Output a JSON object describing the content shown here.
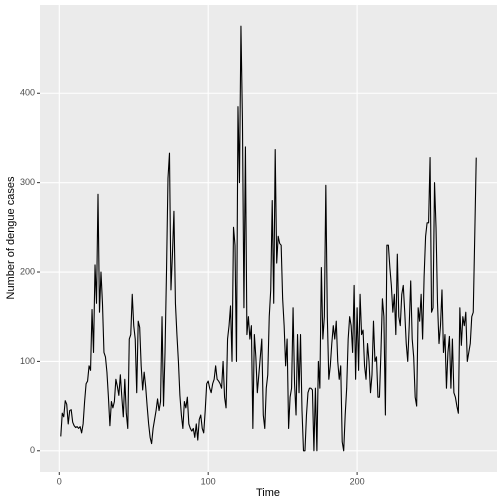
{
  "chart_data": {
    "type": "line",
    "x_label": "Time",
    "y_label": "Number of dengue cases",
    "x": [
      1,
      2,
      3,
      4,
      5,
      6,
      7,
      8,
      9,
      10,
      11,
      12,
      13,
      14,
      15,
      16,
      17,
      18,
      19,
      20,
      21,
      22,
      23,
      24,
      25,
      26,
      27,
      28,
      29,
      30,
      31,
      32,
      33,
      34,
      35,
      36,
      37,
      38,
      39,
      40,
      41,
      42,
      43,
      44,
      45,
      46,
      47,
      48,
      49,
      50,
      51,
      52,
      53,
      54,
      55,
      56,
      57,
      58,
      59,
      60,
      61,
      62,
      63,
      64,
      65,
      66,
      67,
      68,
      69,
      70,
      71,
      72,
      73,
      74,
      75,
      76,
      77,
      78,
      79,
      80,
      81,
      82,
      83,
      84,
      85,
      86,
      87,
      88,
      89,
      90,
      91,
      92,
      93,
      94,
      95,
      96,
      97,
      98,
      99,
      100,
      101,
      102,
      103,
      104,
      105,
      106,
      107,
      108,
      109,
      110,
      111,
      112,
      113,
      114,
      115,
      116,
      117,
      118,
      119,
      120,
      121,
      122,
      123,
      124,
      125,
      126,
      127,
      128,
      129,
      130,
      131,
      132,
      133,
      134,
      135,
      136,
      137,
      138,
      139,
      140,
      141,
      142,
      143,
      144,
      145,
      146,
      147,
      148,
      149,
      150,
      151,
      152,
      153,
      154,
      155,
      156,
      157,
      158,
      159,
      160,
      161,
      162,
      163,
      164,
      165,
      166,
      167,
      168,
      169,
      170,
      171,
      172,
      173,
      174,
      175,
      176,
      177,
      178,
      179,
      180,
      181,
      182,
      183,
      184,
      185,
      186,
      187,
      188,
      189,
      190,
      191,
      192,
      193,
      194,
      195,
      196,
      197,
      198,
      199,
      200,
      201,
      202,
      203,
      204,
      205,
      206,
      207,
      208,
      209,
      210,
      211,
      212,
      213,
      214,
      215,
      216,
      217,
      218,
      219,
      220,
      221,
      222,
      223,
      224,
      225,
      226,
      227,
      228,
      229,
      230,
      231,
      232,
      233,
      234,
      235,
      236,
      237,
      238,
      239,
      240,
      241,
      242,
      243,
      244,
      245,
      246,
      247,
      248,
      249,
      250,
      251,
      252,
      253,
      254,
      255,
      256,
      257,
      258,
      259,
      260,
      261,
      262,
      263,
      264,
      265,
      266,
      267,
      268,
      269,
      270,
      271,
      272,
      273,
      274,
      275,
      276,
      277,
      278,
      279,
      280
    ],
    "values": [
      16,
      42,
      38,
      56,
      52,
      30,
      45,
      46,
      32,
      28,
      26,
      27,
      25,
      27,
      20,
      30,
      55,
      75,
      78,
      95,
      90,
      158,
      110,
      208,
      165,
      287,
      155,
      200,
      165,
      110,
      105,
      88,
      60,
      28,
      55,
      48,
      55,
      80,
      72,
      62,
      85,
      60,
      38,
      80,
      42,
      25,
      125,
      130,
      175,
      140,
      125,
      65,
      145,
      138,
      95,
      68,
      88,
      72,
      50,
      30,
      15,
      8,
      25,
      35,
      45,
      58,
      45,
      55,
      150,
      50,
      110,
      200,
      305,
      333,
      180,
      220,
      268,
      165,
      130,
      100,
      62,
      40,
      25,
      55,
      48,
      60,
      30,
      25,
      22,
      25,
      15,
      30,
      12,
      35,
      40,
      25,
      20,
      45,
      75,
      78,
      70,
      65,
      75,
      80,
      95,
      80,
      78,
      75,
      70,
      100,
      60,
      48,
      125,
      140,
      162,
      100,
      250,
      230,
      100,
      385,
      300,
      475,
      370,
      160,
      340,
      130,
      150,
      125,
      140,
      25,
      130,
      105,
      65,
      85,
      105,
      125,
      40,
      25,
      70,
      85,
      150,
      180,
      280,
      165,
      337,
      210,
      240,
      232,
      230,
      170,
      140,
      95,
      125,
      25,
      60,
      70,
      160,
      75,
      40,
      130,
      65,
      130,
      45,
      0,
      0,
      40,
      65,
      70,
      70,
      68,
      0,
      70,
      0,
      100,
      70,
      205,
      125,
      150,
      297,
      150,
      80,
      95,
      120,
      140,
      125,
      145,
      100,
      80,
      95,
      10,
      0,
      40,
      70,
      125,
      150,
      140,
      110,
      185,
      80,
      160,
      90,
      175,
      130,
      135,
      95,
      80,
      120,
      100,
      65,
      85,
      145,
      100,
      105,
      60,
      60,
      110,
      170,
      150,
      40,
      230,
      230,
      205,
      185,
      155,
      175,
      130,
      220,
      150,
      140,
      175,
      185,
      155,
      120,
      100,
      140,
      190,
      125,
      105,
      60,
      50,
      160,
      145,
      175,
      125,
      195,
      240,
      255,
      255,
      328,
      155,
      160,
      300,
      250,
      165,
      120,
      140,
      180,
      110,
      130,
      70,
      110,
      128,
      70,
      125,
      65,
      60,
      50,
      42,
      160,
      118,
      150,
      140,
      155,
      100,
      110,
      120,
      150,
      155,
      240,
      328
    ],
    "color": "#000000",
    "xlim": [
      -12.95,
      293.95
    ],
    "xticks": [
      0,
      100,
      200
    ],
    "ylim": [
      -23.75,
      498.75
    ],
    "yticks": [
      0,
      100,
      200,
      300,
      400
    ],
    "grid": true
  }
}
